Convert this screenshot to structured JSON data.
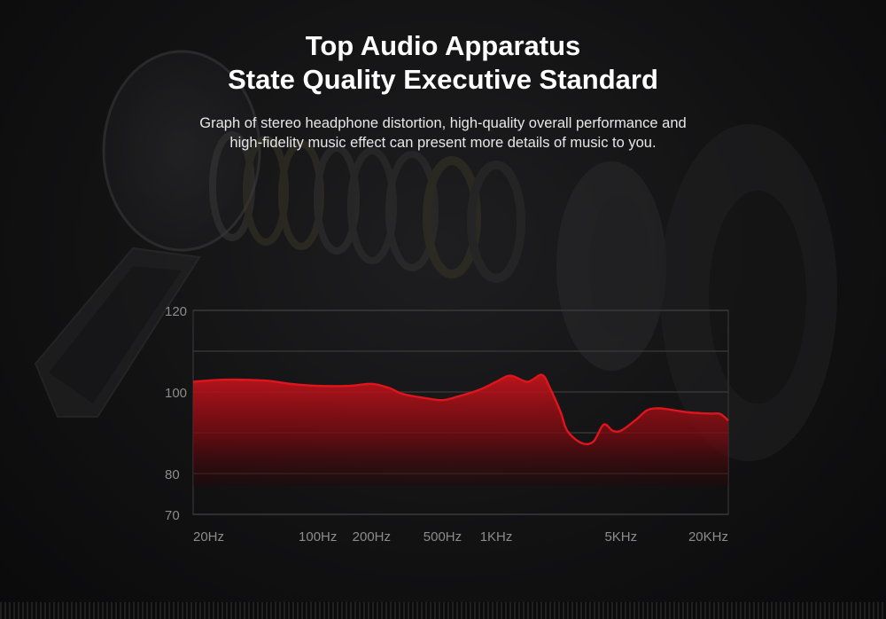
{
  "header": {
    "title_line1": "Top Audio Apparatus",
    "title_line2": "State Quality Executive Standard",
    "desc_line1": "Graph of stereo headphone distortion, high-quality overall performance and",
    "desc_line2": "high-fidelity music effect can present more details of music to you."
  },
  "colors": {
    "curve": "#e0141c",
    "fill_top": "#b5121a",
    "grid": "#3a3a3a",
    "tick_label": "#8c8c8c"
  },
  "chart_data": {
    "type": "area",
    "title": "",
    "xlabel": "",
    "ylabel": "",
    "x_scale": "log",
    "x_tick_labels": [
      "20Hz",
      "100Hz",
      "200Hz",
      "500Hz",
      "1KHz",
      "5KHz",
      "20KHz"
    ],
    "x_tick_values": [
      20,
      100,
      200,
      500,
      1000,
      5000,
      20000
    ],
    "y_tick_labels": [
      "120",
      "100",
      "80",
      "70"
    ],
    "y_tick_values": [
      120,
      100,
      80,
      70
    ],
    "gridlines_y": [
      120,
      110,
      100,
      90,
      80,
      70
    ],
    "ylim": [
      70,
      120
    ],
    "grid": true,
    "series": [
      {
        "x": [
          20,
          30,
          50,
          70,
          100,
          150,
          200,
          250,
          300,
          400,
          500,
          600,
          800,
          1000,
          1200,
          1500,
          1800,
          2000,
          2300,
          2500,
          3000,
          3500,
          4000,
          4500,
          5000,
          6000,
          7000,
          8000,
          9000,
          10000,
          12000,
          14000,
          16000,
          18000,
          20000
        ],
        "values": [
          102.5,
          103,
          102.8,
          102,
          101.5,
          101.5,
          102,
          101,
          99.5,
          98.5,
          98,
          98.8,
          100.5,
          102.5,
          104,
          102.5,
          104.2,
          101,
          95,
          90.5,
          87.5,
          87.8,
          92,
          90.5,
          90.5,
          93,
          95.5,
          96,
          95.8,
          95.5,
          95,
          94.8,
          94.7,
          94.6,
          93
        ]
      }
    ]
  }
}
